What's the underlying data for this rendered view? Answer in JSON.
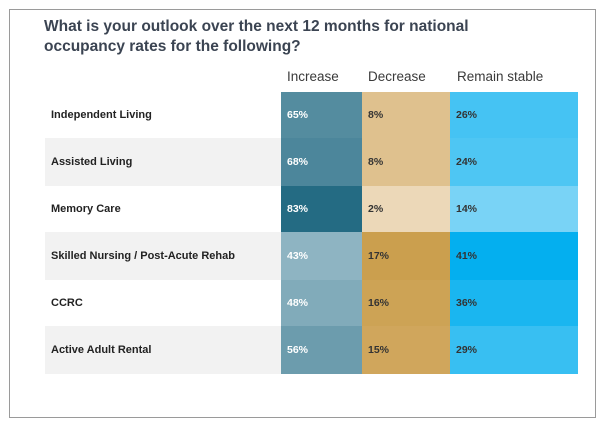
{
  "title": "What is your outlook over the next 12 months for national occupancy rates for the following?",
  "chart_data": {
    "type": "table",
    "title": "What is your outlook over the next 12 months for national occupancy rates for the following?",
    "columns": [
      "Increase",
      "Decrease",
      "Remain stable"
    ],
    "rows": [
      {
        "label": "Independent Living",
        "values": [
          65,
          8,
          26
        ]
      },
      {
        "label": "Assisted Living",
        "values": [
          68,
          8,
          24
        ]
      },
      {
        "label": "Memory Care",
        "values": [
          83,
          2,
          14
        ]
      },
      {
        "label": "Skilled Nursing / Post-Acute Rehab",
        "values": [
          43,
          17,
          41
        ]
      },
      {
        "label": "CCRC",
        "values": [
          48,
          16,
          36
        ]
      },
      {
        "label": "Active Adult Rental",
        "values": [
          56,
          15,
          29
        ]
      }
    ],
    "unit": "%",
    "colors": {
      "increase_low": "#d6e6ec",
      "increase_high": "#1f6780",
      "decrease_low": "#f7ecdd",
      "decrease_high": "#c99b47",
      "stable_low": "#c5ebfa",
      "stable_high": "#00aeef"
    }
  }
}
